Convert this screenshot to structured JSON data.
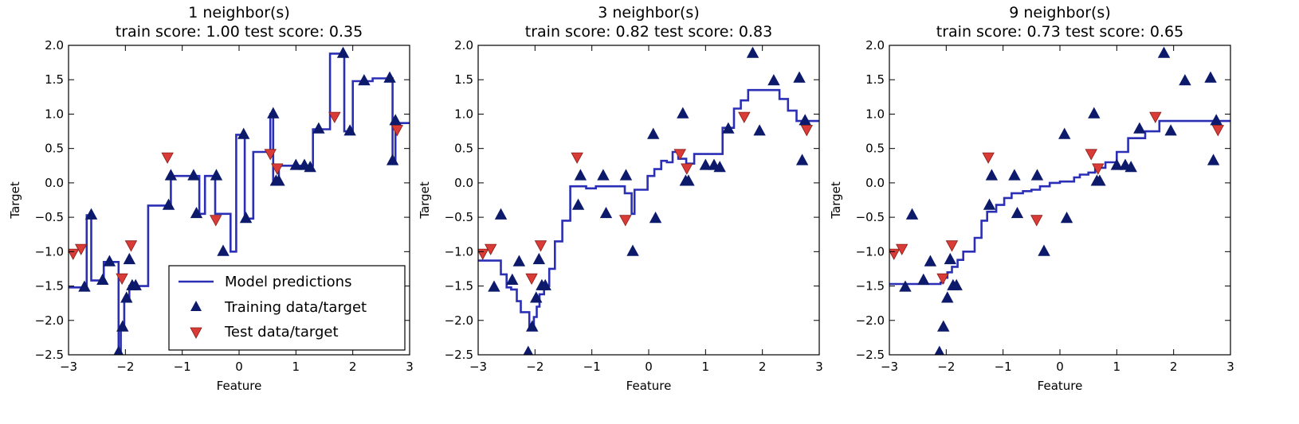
{
  "chart_data": [
    {
      "type": "line",
      "title": "1 neighbor(s)",
      "subtitle": "train score: 1.00 test score: 0.35",
      "xlabel": "Feature",
      "ylabel": "Target",
      "xlim": [
        -3,
        3
      ],
      "ylim": [
        -2.5,
        2.0
      ],
      "xticks": [
        "−3",
        "−2",
        "−1",
        "0",
        "1",
        "2",
        "3"
      ],
      "yticks": [
        "−2.5",
        "−2.0",
        "−1.5",
        "−1.0",
        "−0.5",
        "0.0",
        "0.5",
        "1.0",
        "1.5",
        "2.0"
      ],
      "legend": {
        "position": "lower-right",
        "entries": [
          "Model predictions",
          "Training data/target",
          "Test data/target"
        ]
      },
      "series": [
        {
          "name": "Model predictions",
          "kind": "step",
          "x": [
            -3.0,
            -2.75,
            -2.68,
            -2.6,
            -2.55,
            -2.5,
            -2.38,
            -2.28,
            -2.12,
            -2.08,
            -2.02,
            -1.98,
            -1.93,
            -1.82,
            -1.6,
            -1.3,
            -1.2,
            -1.0,
            -0.85,
            -0.7,
            -0.6,
            -0.45,
            -0.42,
            -0.32,
            -0.15,
            -0.05,
            0.1,
            0.25,
            0.55,
            0.6,
            0.7,
            0.95,
            1.2,
            1.3,
            1.5,
            1.6,
            1.75,
            1.85,
            2.0,
            2.15,
            2.35,
            2.5,
            2.65,
            2.7,
            2.75,
            2.8,
            3.0
          ],
          "y": [
            -1.52,
            -1.52,
            -0.47,
            -1.42,
            -1.42,
            -1.42,
            -1.15,
            -1.15,
            -2.47,
            -2.1,
            -1.68,
            -1.68,
            -1.5,
            -1.5,
            -0.33,
            -0.33,
            0.1,
            0.1,
            0.1,
            -0.45,
            0.1,
            0.1,
            -0.45,
            -0.45,
            -1.0,
            0.7,
            -0.52,
            0.45,
            1.0,
            0.02,
            0.25,
            0.25,
            0.25,
            0.78,
            0.78,
            1.88,
            1.88,
            0.75,
            1.48,
            1.48,
            1.52,
            1.52,
            1.52,
            0.32,
            0.87,
            0.87,
            0.87
          ]
        },
        {
          "name": "Training data/target",
          "kind": "marker",
          "marker": "triangle-up",
          "x": [
            -2.72,
            -2.6,
            -2.4,
            -2.28,
            -2.12,
            -2.05,
            -1.98,
            -1.93,
            -1.88,
            -1.82,
            -1.24,
            -1.2,
            -0.8,
            -0.75,
            -0.4,
            -0.28,
            0.08,
            0.12,
            0.6,
            0.65,
            0.7,
            1.0,
            1.15,
            1.25,
            1.4,
            1.83,
            1.95,
            2.2,
            2.65,
            2.7,
            2.75
          ],
          "y": [
            -1.52,
            -0.47,
            -1.42,
            -1.15,
            -2.47,
            -2.1,
            -1.68,
            -1.12,
            -1.5,
            -1.5,
            -0.33,
            0.1,
            0.1,
            -0.45,
            0.1,
            -1.0,
            0.7,
            -0.52,
            1.0,
            0.02,
            0.02,
            0.25,
            0.25,
            0.22,
            0.78,
            1.88,
            0.75,
            1.48,
            1.52,
            0.32,
            0.9
          ]
        },
        {
          "name": "Test data/target",
          "kind": "marker",
          "marker": "triangle-down",
          "x": [
            -2.92,
            -2.78,
            -2.06,
            -1.9,
            -1.26,
            -0.41,
            0.55,
            0.67,
            1.68,
            2.78
          ],
          "y": [
            -1.02,
            -0.95,
            -1.38,
            -0.9,
            0.38,
            -0.53,
            0.43,
            0.22,
            0.97,
            0.78
          ]
        }
      ]
    },
    {
      "type": "line",
      "title": "3 neighbor(s)",
      "subtitle": "train score: 0.82 test score: 0.83",
      "xlabel": "Feature",
      "ylabel": "Target",
      "xlim": [
        -3,
        3
      ],
      "ylim": [
        -2.5,
        2.0
      ],
      "xticks": [
        "−3",
        "−2",
        "−1",
        "0",
        "1",
        "2",
        "3"
      ],
      "yticks": [
        "−2.5",
        "−2.0",
        "−1.5",
        "−1.0",
        "−0.5",
        "0.0",
        "0.5",
        "1.0",
        "1.5",
        "2.0"
      ],
      "series": [
        {
          "name": "Model predictions",
          "kind": "step",
          "x": [
            -3.0,
            -2.6,
            -2.5,
            -2.42,
            -2.32,
            -2.25,
            -2.1,
            -2.02,
            -1.97,
            -1.92,
            -1.84,
            -1.75,
            -1.65,
            -1.52,
            -1.38,
            -1.27,
            -1.1,
            -0.93,
            -0.75,
            -0.42,
            -0.3,
            -0.25,
            -0.02,
            0.1,
            0.22,
            0.32,
            0.42,
            0.52,
            0.66,
            0.8,
            1.05,
            1.3,
            1.5,
            1.62,
            1.75,
            1.9,
            2.3,
            2.45,
            2.6,
            3.0
          ],
          "y": [
            -1.13,
            -1.33,
            -1.52,
            -1.55,
            -1.72,
            -1.88,
            -2.1,
            -1.95,
            -1.8,
            -1.62,
            -1.5,
            -1.25,
            -0.85,
            -0.55,
            -0.05,
            -0.05,
            -0.08,
            -0.05,
            -0.05,
            -0.15,
            -0.45,
            -0.1,
            0.1,
            0.2,
            0.32,
            0.3,
            0.45,
            0.35,
            0.28,
            0.42,
            0.42,
            0.8,
            1.08,
            1.2,
            1.35,
            1.35,
            1.22,
            1.05,
            0.9,
            0.9
          ]
        },
        {
          "name": "Training data/target",
          "kind": "marker",
          "marker": "triangle-up",
          "x": [
            -2.72,
            -2.6,
            -2.4,
            -2.28,
            -2.12,
            -2.05,
            -1.98,
            -1.93,
            -1.88,
            -1.82,
            -1.24,
            -1.2,
            -0.8,
            -0.75,
            -0.4,
            -0.28,
            0.08,
            0.12,
            0.6,
            0.65,
            0.7,
            1.0,
            1.15,
            1.25,
            1.4,
            1.83,
            1.95,
            2.2,
            2.65,
            2.7,
            2.75
          ],
          "y": [
            -1.52,
            -0.47,
            -1.42,
            -1.15,
            -2.47,
            -2.1,
            -1.68,
            -1.12,
            -1.5,
            -1.5,
            -0.33,
            0.1,
            0.1,
            -0.45,
            0.1,
            -1.0,
            0.7,
            -0.52,
            1.0,
            0.02,
            0.02,
            0.25,
            0.25,
            0.22,
            0.78,
            1.88,
            0.75,
            1.48,
            1.52,
            0.32,
            0.9
          ]
        },
        {
          "name": "Test data/target",
          "kind": "marker",
          "marker": "triangle-down",
          "x": [
            -2.92,
            -2.78,
            -2.06,
            -1.9,
            -1.26,
            -0.41,
            0.55,
            0.67,
            1.68,
            2.78
          ],
          "y": [
            -1.02,
            -0.95,
            -1.38,
            -0.9,
            0.38,
            -0.53,
            0.43,
            0.22,
            0.97,
            0.78
          ]
        }
      ]
    },
    {
      "type": "line",
      "title": "9 neighbor(s)",
      "subtitle": "train score: 0.73 test score: 0.65",
      "xlabel": "Feature",
      "ylabel": "Target",
      "xlim": [
        -3,
        3
      ],
      "ylim": [
        -2.5,
        2.0
      ],
      "xticks": [
        "−3",
        "−2",
        "−1",
        "0",
        "1",
        "2",
        "3"
      ],
      "yticks": [
        "−2.5",
        "−2.0",
        "−1.5",
        "−1.0",
        "−0.5",
        "0.0",
        "0.5",
        "1.0",
        "1.5",
        "2.0"
      ],
      "series": [
        {
          "name": "Model predictions",
          "kind": "step",
          "x": [
            -3.0,
            -2.1,
            -2.05,
            -1.98,
            -1.9,
            -1.8,
            -1.7,
            -1.5,
            -1.38,
            -1.28,
            -1.12,
            -0.98,
            -0.85,
            -0.65,
            -0.5,
            -0.35,
            -0.18,
            0.0,
            0.25,
            0.35,
            0.5,
            0.62,
            0.8,
            1.0,
            1.2,
            1.5,
            1.75,
            3.0
          ],
          "y": [
            -1.47,
            -1.45,
            -1.38,
            -1.3,
            -1.22,
            -1.12,
            -1.0,
            -0.8,
            -0.55,
            -0.42,
            -0.32,
            -0.22,
            -0.15,
            -0.12,
            -0.1,
            -0.05,
            0.0,
            0.02,
            0.08,
            0.12,
            0.15,
            0.22,
            0.3,
            0.45,
            0.65,
            0.75,
            0.9,
            0.9
          ]
        },
        {
          "name": "Training data/target",
          "kind": "marker",
          "marker": "triangle-up",
          "x": [
            -2.72,
            -2.6,
            -2.4,
            -2.28,
            -2.12,
            -2.05,
            -1.98,
            -1.93,
            -1.88,
            -1.82,
            -1.24,
            -1.2,
            -0.8,
            -0.75,
            -0.4,
            -0.28,
            0.08,
            0.12,
            0.6,
            0.65,
            0.7,
            1.0,
            1.15,
            1.25,
            1.4,
            1.83,
            1.95,
            2.2,
            2.65,
            2.7,
            2.75
          ],
          "y": [
            -1.52,
            -0.47,
            -1.42,
            -1.15,
            -2.47,
            -2.1,
            -1.68,
            -1.12,
            -1.5,
            -1.5,
            -0.33,
            0.1,
            0.1,
            -0.45,
            0.1,
            -1.0,
            0.7,
            -0.52,
            1.0,
            0.02,
            0.02,
            0.25,
            0.25,
            0.22,
            0.78,
            1.88,
            0.75,
            1.48,
            1.52,
            0.32,
            0.9
          ]
        },
        {
          "name": "Test data/target",
          "kind": "marker",
          "marker": "triangle-down",
          "x": [
            -2.92,
            -2.78,
            -2.06,
            -1.9,
            -1.26,
            -0.41,
            0.55,
            0.67,
            1.68,
            2.78
          ],
          "y": [
            -1.02,
            -0.95,
            -1.38,
            -0.9,
            0.38,
            -0.53,
            0.43,
            0.22,
            0.97,
            0.78
          ]
        }
      ]
    }
  ],
  "colors": {
    "line": "#2a2fb5",
    "train_marker": "#0d1a6b",
    "test_marker": "#d93b36",
    "test_marker_edge": "#8a1c18"
  }
}
